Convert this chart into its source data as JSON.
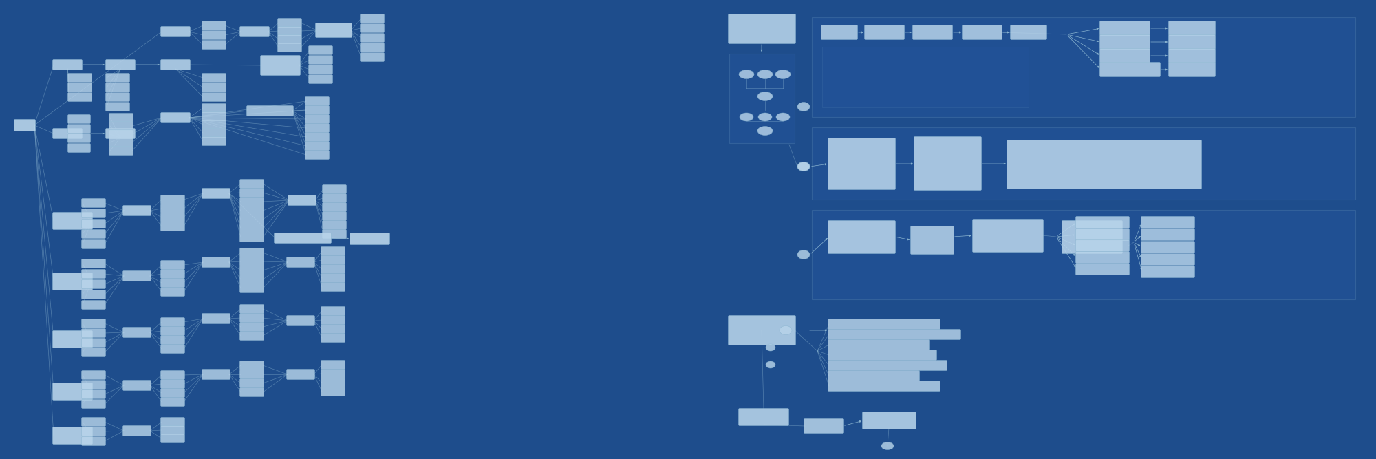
{
  "bg_color": "#1e4d8c",
  "node_fill": "#b8d4ea",
  "node_edge": "#8ab4d0",
  "line_color": "#8ab4d0",
  "border_color": "#6090b8",
  "fig_width": 20.0,
  "fig_height": 6.67,
  "dpi": 100
}
